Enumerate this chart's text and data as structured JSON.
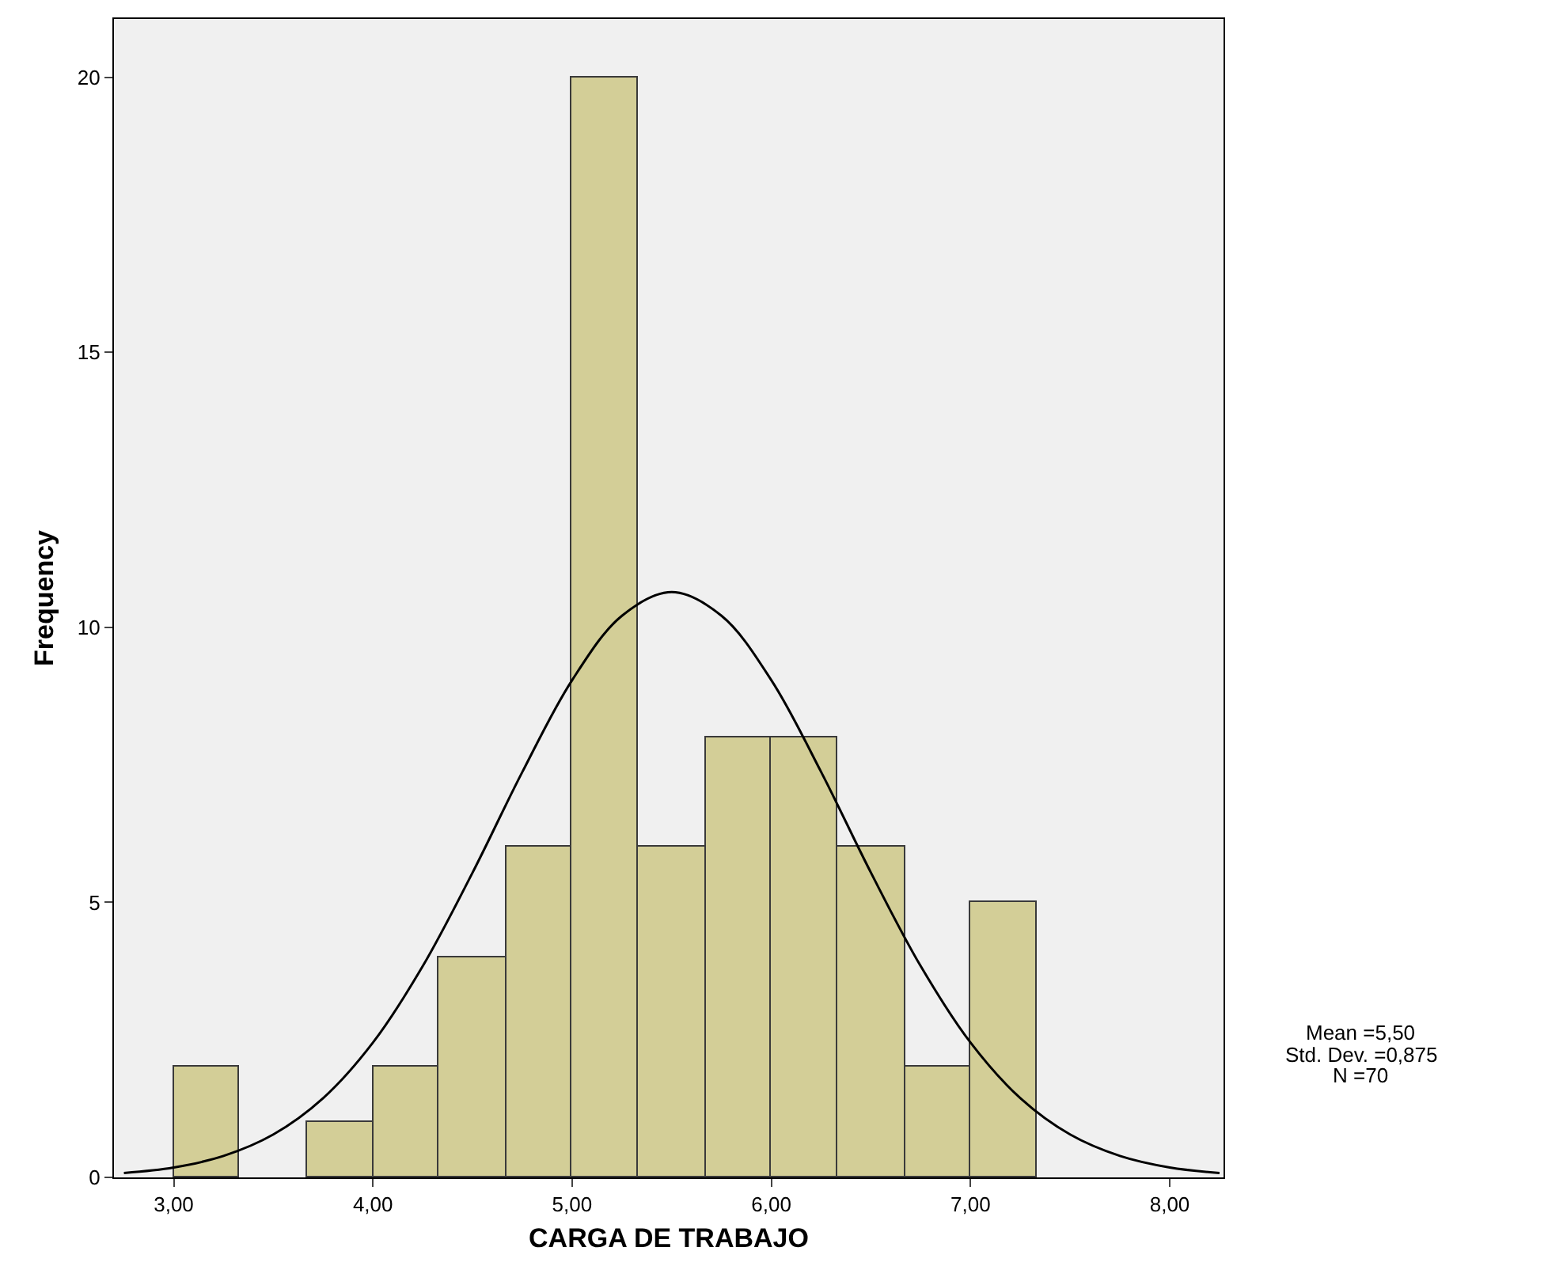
{
  "chart_data": {
    "type": "histogram",
    "xlabel": "CARGA DE TRABAJO",
    "ylabel": "Frequency",
    "bins": [
      3,
      3.33,
      3.67,
      4,
      4.33,
      4.67,
      5,
      5.33,
      5.67,
      6,
      6.33,
      6.67,
      7,
      7.33
    ],
    "values": [
      2,
      0,
      1,
      2,
      4,
      6,
      20,
      6,
      8,
      8,
      6,
      2,
      5
    ],
    "color": "#d3ce97",
    "series": [
      {
        "type": "line",
        "color": "#000000",
        "x": [
          2.75,
          3,
          3.25,
          3.5,
          3.75,
          4,
          4.25,
          4.5,
          4.75,
          5,
          5.25,
          5.5,
          5.75,
          6,
          6.25,
          6.5,
          6.75,
          7,
          7.25,
          7.5,
          7.75,
          8,
          8.25
        ],
        "values": [
          0.08,
          0.18,
          0.39,
          0.78,
          1.44,
          2.45,
          3.84,
          5.54,
          7.37,
          9.04,
          10.21,
          10.64,
          10.21,
          9.04,
          7.37,
          5.54,
          3.84,
          2.45,
          1.44,
          0.78,
          0.39,
          0.18,
          0.08
        ]
      }
    ],
    "xlim": [
      2.7,
      8.27
    ],
    "ylim": [
      0,
      21.06
    ],
    "xticks": [
      {
        "value": 3,
        "label": "3,00"
      },
      {
        "value": 4,
        "label": "4,00"
      },
      {
        "value": 5,
        "label": "5,00"
      },
      {
        "value": 6,
        "label": "6,00"
      },
      {
        "value": 7,
        "label": "7,00"
      },
      {
        "value": 8,
        "label": "8,00"
      }
    ],
    "yticks": [
      0,
      5,
      10,
      15,
      20
    ],
    "annotations": [
      "Mean =5,50",
      "Std. Dev. =0,875",
      "N =70"
    ],
    "grid": false,
    "marker": "none",
    "line_style": "solid"
  }
}
